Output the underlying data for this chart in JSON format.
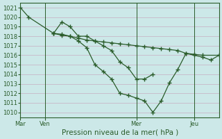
{
  "xlabel": "Pression niveau de la mer( hPa )",
  "ylim": [
    1009.5,
    1021.5
  ],
  "yticks": [
    1010,
    1011,
    1012,
    1013,
    1014,
    1015,
    1016,
    1017,
    1018,
    1019,
    1020,
    1021
  ],
  "bg_color": "#cce8e8",
  "grid_color": "#c8b8c8",
  "line_color": "#2a5c2a",
  "series": [
    {
      "x": [
        0.0,
        0.5,
        2.0,
        2.5,
        3.0,
        3.5,
        4.0,
        4.5,
        5.0,
        5.5,
        6.0,
        6.5,
        7.0,
        7.5,
        8.0,
        8.5,
        9.0,
        9.5,
        10.0,
        10.5,
        11.0,
        12.0
      ],
      "y": [
        1021.0,
        1020.0,
        1018.3,
        1018.1,
        1018.0,
        1017.8,
        1017.6,
        1017.5,
        1017.4,
        1017.3,
        1017.2,
        1017.1,
        1017.0,
        1016.9,
        1016.8,
        1016.7,
        1016.6,
        1016.5,
        1016.2,
        1016.1,
        1016.0,
        1016.0
      ]
    },
    {
      "x": [
        2.0,
        2.5,
        3.0,
        3.5,
        4.0,
        4.5,
        5.0,
        5.5,
        6.0,
        6.5,
        7.0,
        7.5,
        8.0
      ],
      "y": [
        1018.3,
        1019.5,
        1019.0,
        1018.0,
        1018.0,
        1017.5,
        1017.0,
        1016.5,
        1015.3,
        1014.7,
        1013.5,
        1013.5,
        1014.0
      ]
    },
    {
      "x": [
        2.0,
        2.5,
        3.0,
        3.5,
        4.0,
        4.5,
        5.0,
        5.5,
        6.0,
        6.5,
        7.0,
        7.5,
        8.0,
        8.5,
        9.0,
        9.5,
        10.0,
        10.5,
        11.0,
        11.5,
        12.0
      ],
      "y": [
        1018.3,
        1018.2,
        1018.0,
        1017.5,
        1016.8,
        1015.0,
        1014.3,
        1013.5,
        1012.0,
        1011.8,
        1011.5,
        1011.2,
        1010.0,
        1011.2,
        1013.1,
        1014.5,
        1016.2,
        1016.0,
        1015.8,
        1015.5,
        1016.0
      ]
    }
  ],
  "day_positions": [
    0.0,
    1.5,
    7.0,
    10.5
  ],
  "day_labels": [
    "Mar",
    "Ven",
    "Mer",
    "Jeu"
  ],
  "xmin": 0.0,
  "xmax": 12.0,
  "xlabel_fontsize": 7.5,
  "tick_fontsize": 6.0,
  "ylabel_x_offset": 0.0
}
